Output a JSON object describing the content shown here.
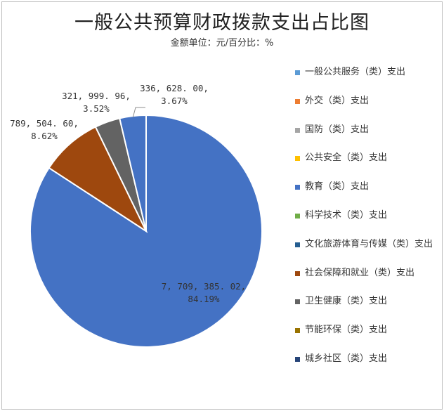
{
  "chart_data": {
    "type": "pie",
    "title": "一般公共预算财政拨款支出占比图",
    "subtitle": "金额单位：元/百分比：%",
    "categories": [
      "一般公共服务（类）支出",
      "外交（类）支出",
      "国防（类）支出",
      "公共安全（类）支出",
      "教育（类）支出",
      "科学技术（类）支出",
      "文化旅游体育与传媒（类）支出",
      "社会保障和就业（类）支出",
      "卫生健康（类）支出",
      "节能环保（类）支出",
      "城乡社区（类）支出"
    ],
    "colors": [
      "#5b9bd5",
      "#ed7d31",
      "#a5a5a5",
      "#ffc000",
      "#4472c4",
      "#70ad47",
      "#255e91",
      "#9e480e",
      "#636363",
      "#997300",
      "#264478"
    ],
    "values": [
      0,
      0,
      0,
      0,
      7709385.02,
      0,
      0,
      789504.6,
      321999.96,
      0,
      336628.0
    ],
    "percents": [
      0,
      0,
      0,
      0,
      84.19,
      0,
      0,
      8.62,
      3.52,
      0,
      3.67
    ],
    "slice_colors": [
      "#4472c4",
      "#9e480e",
      "#636363",
      "#4472c4"
    ],
    "data_labels": [
      {
        "category": "教育（类）支出",
        "value": "7, 709, 385. 02,",
        "percent": "84.19%"
      },
      {
        "category": "社会保障和就业（类）支出",
        "value": "789, 504. 60,",
        "percent": "8.62%"
      },
      {
        "category": "卫生健康（类）支出",
        "value": "321, 999. 96,",
        "percent": "3.52%"
      },
      {
        "category": "城乡社区（类）支出",
        "value": "336, 628. 00,",
        "percent": "3.67%"
      }
    ],
    "legend_position": "right"
  }
}
